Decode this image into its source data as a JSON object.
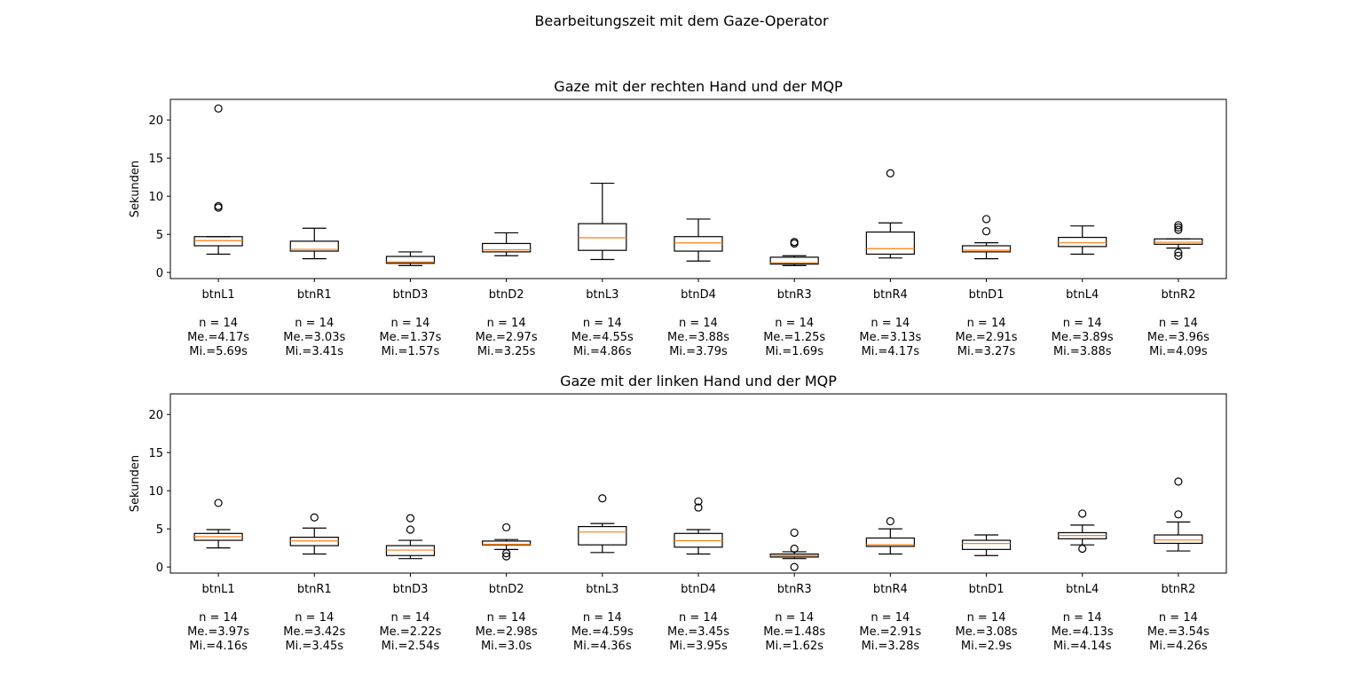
{
  "figure": {
    "title": "Bearbeitungszeit mit dem Gaze-Operator"
  },
  "chart_data": [
    {
      "type": "box",
      "title": "Gaze mit der rechten Hand und der MQP",
      "ylabel": "Sekunden",
      "ylim": [
        -0.8,
        22.7
      ],
      "yticks": [
        0,
        5,
        10,
        15,
        20
      ],
      "categories": [
        "btnL1",
        "btnR1",
        "btnD3",
        "btnD2",
        "btnL3",
        "btnD4",
        "btnR3",
        "btnR4",
        "btnD1",
        "btnL4",
        "btnR2"
      ],
      "stats": [
        [
          "n = 14",
          "Me.=4.17s",
          "Mi.=5.69s"
        ],
        [
          "n = 14",
          "Me.=3.03s",
          "Mi.=3.41s"
        ],
        [
          "n = 14",
          "Me.=1.37s",
          "Mi.=1.57s"
        ],
        [
          "n = 14",
          "Me.=2.97s",
          "Mi.=3.25s"
        ],
        [
          "n = 14",
          "Me.=4.55s",
          "Mi.=4.86s"
        ],
        [
          "n = 14",
          "Me.=3.88s",
          "Mi.=3.79s"
        ],
        [
          "n = 14",
          "Me.=1.25s",
          "Mi.=1.69s"
        ],
        [
          "n = 14",
          "Me.=3.13s",
          "Mi.=4.17s"
        ],
        [
          "n = 14",
          "Me.=2.91s",
          "Mi.=3.27s"
        ],
        [
          "n = 14",
          "Me.=3.89s",
          "Mi.=3.88s"
        ],
        [
          "n = 14",
          "Me.=3.96s",
          "Mi.=4.09s"
        ]
      ],
      "boxes": [
        {
          "whislo": 2.4,
          "q1": 3.5,
          "med": 4.17,
          "q3": 4.7,
          "whishi": 4.7,
          "fliers": [
            8.5,
            8.7,
            21.5
          ]
        },
        {
          "whislo": 1.8,
          "q1": 2.8,
          "med": 3.03,
          "q3": 4.1,
          "whishi": 5.8,
          "fliers": []
        },
        {
          "whislo": 0.9,
          "q1": 1.2,
          "med": 1.37,
          "q3": 2.1,
          "whishi": 2.7,
          "fliers": []
        },
        {
          "whislo": 2.2,
          "q1": 2.7,
          "med": 2.97,
          "q3": 3.8,
          "whishi": 5.2,
          "fliers": []
        },
        {
          "whislo": 1.7,
          "q1": 2.9,
          "med": 4.55,
          "q3": 6.4,
          "whishi": 11.7,
          "fliers": []
        },
        {
          "whislo": 1.5,
          "q1": 2.8,
          "med": 3.88,
          "q3": 4.7,
          "whishi": 7.0,
          "fliers": []
        },
        {
          "whislo": 0.9,
          "q1": 1.1,
          "med": 1.25,
          "q3": 2.0,
          "whishi": 2.2,
          "fliers": [
            3.8,
            4.0
          ]
        },
        {
          "whislo": 1.9,
          "q1": 2.4,
          "med": 3.13,
          "q3": 5.3,
          "whishi": 6.5,
          "fliers": [
            13.0
          ]
        },
        {
          "whislo": 1.8,
          "q1": 2.7,
          "med": 2.91,
          "q3": 3.5,
          "whishi": 3.9,
          "fliers": [
            5.4,
            7.0
          ]
        },
        {
          "whislo": 2.4,
          "q1": 3.4,
          "med": 3.89,
          "q3": 4.6,
          "whishi": 6.1,
          "fliers": []
        },
        {
          "whislo": 3.2,
          "q1": 3.7,
          "med": 3.96,
          "q3": 4.4,
          "whishi": 4.4,
          "fliers": [
            2.2,
            2.6,
            5.6,
            5.9,
            6.2
          ]
        }
      ]
    },
    {
      "type": "box",
      "title": "Gaze mit der linken Hand und der MQP",
      "ylabel": "Sekunden",
      "ylim": [
        -0.8,
        22.7
      ],
      "yticks": [
        0,
        5,
        10,
        15,
        20
      ],
      "categories": [
        "btnL1",
        "btnR1",
        "btnD3",
        "btnD2",
        "btnL3",
        "btnD4",
        "btnR3",
        "btnR4",
        "btnD1",
        "btnL4",
        "btnR2"
      ],
      "stats": [
        [
          "n = 14",
          "Me.=3.97s",
          "Mi.=4.16s"
        ],
        [
          "n = 14",
          "Me.=3.42s",
          "Mi.=3.45s"
        ],
        [
          "n = 14",
          "Me.=2.22s",
          "Mi.=2.54s"
        ],
        [
          "n = 14",
          "Me.=2.98s",
          "Mi.=3.0s"
        ],
        [
          "n = 14",
          "Me.=4.59s",
          "Mi.=4.36s"
        ],
        [
          "n = 14",
          "Me.=3.45s",
          "Mi.=3.95s"
        ],
        [
          "n = 14",
          "Me.=1.48s",
          "Mi.=1.62s"
        ],
        [
          "n = 14",
          "Me.=2.91s",
          "Mi.=3.28s"
        ],
        [
          "n = 14",
          "Me.=3.08s",
          "Mi.=2.9s"
        ],
        [
          "n = 14",
          "Me.=4.13s",
          "Mi.=4.14s"
        ],
        [
          "n = 14",
          "Me.=3.54s",
          "Mi.=4.26s"
        ]
      ],
      "boxes": [
        {
          "whislo": 2.5,
          "q1": 3.5,
          "med": 3.97,
          "q3": 4.4,
          "whishi": 4.9,
          "fliers": [
            8.4
          ]
        },
        {
          "whislo": 1.7,
          "q1": 2.8,
          "med": 3.42,
          "q3": 3.9,
          "whishi": 5.1,
          "fliers": [
            6.5
          ]
        },
        {
          "whislo": 1.1,
          "q1": 1.5,
          "med": 2.22,
          "q3": 2.8,
          "whishi": 3.5,
          "fliers": [
            4.9,
            6.4
          ]
        },
        {
          "whislo": 2.3,
          "q1": 2.9,
          "med": 2.98,
          "q3": 3.4,
          "whishi": 3.6,
          "fliers": [
            1.4,
            1.8,
            5.2
          ]
        },
        {
          "whislo": 1.9,
          "q1": 2.9,
          "med": 4.59,
          "q3": 5.3,
          "whishi": 5.7,
          "fliers": [
            9.0
          ]
        },
        {
          "whislo": 1.7,
          "q1": 2.6,
          "med": 3.45,
          "q3": 4.4,
          "whishi": 4.9,
          "fliers": [
            7.8,
            8.6
          ]
        },
        {
          "whislo": 1.1,
          "q1": 1.3,
          "med": 1.48,
          "q3": 1.7,
          "whishi": 2.0,
          "fliers": [
            0.0,
            2.4,
            4.5
          ]
        },
        {
          "whislo": 1.7,
          "q1": 2.7,
          "med": 2.91,
          "q3": 3.8,
          "whishi": 5.0,
          "fliers": [
            6.0
          ]
        },
        {
          "whislo": 1.5,
          "q1": 2.3,
          "med": 3.08,
          "q3": 3.5,
          "whishi": 4.2,
          "fliers": []
        },
        {
          "whislo": 2.9,
          "q1": 3.7,
          "med": 4.13,
          "q3": 4.5,
          "whishi": 5.5,
          "fliers": [
            2.4,
            7.0
          ]
        },
        {
          "whislo": 2.1,
          "q1": 3.1,
          "med": 3.54,
          "q3": 4.2,
          "whishi": 5.9,
          "fliers": [
            6.9,
            11.2
          ]
        }
      ]
    }
  ]
}
